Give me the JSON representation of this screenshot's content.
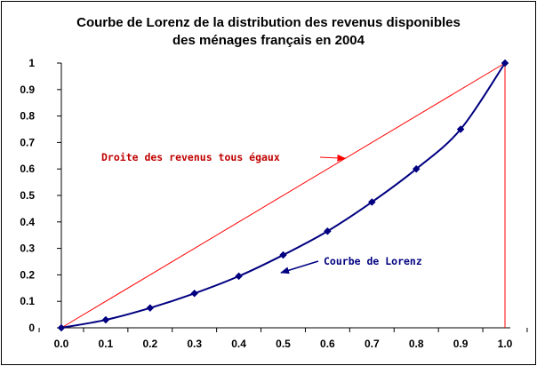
{
  "chart_data": {
    "type": "line",
    "title_lines": [
      "Courbe de Lorenz de la distribution des revenus disponibles",
      "des ménages français en 2004"
    ],
    "xlabel": "",
    "ylabel": "",
    "xlim": [
      0,
      1
    ],
    "ylim": [
      0,
      1
    ],
    "x_ticks": [
      "0.0",
      "0.1",
      "0.2",
      "0.3",
      "0.4",
      "0.5",
      "0.6",
      "0.7",
      "0.8",
      "0.9",
      "1.0"
    ],
    "y_ticks": [
      "0",
      "0.1",
      "0.2",
      "0.3",
      "0.4",
      "0.5",
      "0.6",
      "0.7",
      "0.8",
      "0.9",
      "1"
    ],
    "grid": false,
    "legend": "none",
    "colors": {
      "lorenz": "#000080",
      "equality": "#ff0000",
      "annotation_red": "#c00000",
      "annotation_blue": "#000080"
    },
    "series": [
      {
        "key": "lorenz",
        "x": [
          0,
          0.1,
          0.2,
          0.3,
          0.4,
          0.5,
          0.6,
          0.7,
          0.8,
          0.9,
          1.0
        ],
        "y": [
          0,
          0.03,
          0.075,
          0.13,
          0.195,
          0.275,
          0.365,
          0.475,
          0.6,
          0.75,
          1.0
        ]
      },
      {
        "key": "equality",
        "x": [
          0,
          1.0
        ],
        "y": [
          0,
          1.0
        ]
      }
    ],
    "vertical_line": {
      "x": 1.0,
      "y": [
        0,
        1.0
      ]
    },
    "annotations": {
      "equality": {
        "text": "Droite des revenus tous égaux",
        "arrow_to": [
          0.64,
          0.64
        ]
      },
      "lorenz": {
        "text": "Courbe de Lorenz",
        "arrow_to": [
          0.485,
          0.255
        ]
      }
    }
  }
}
